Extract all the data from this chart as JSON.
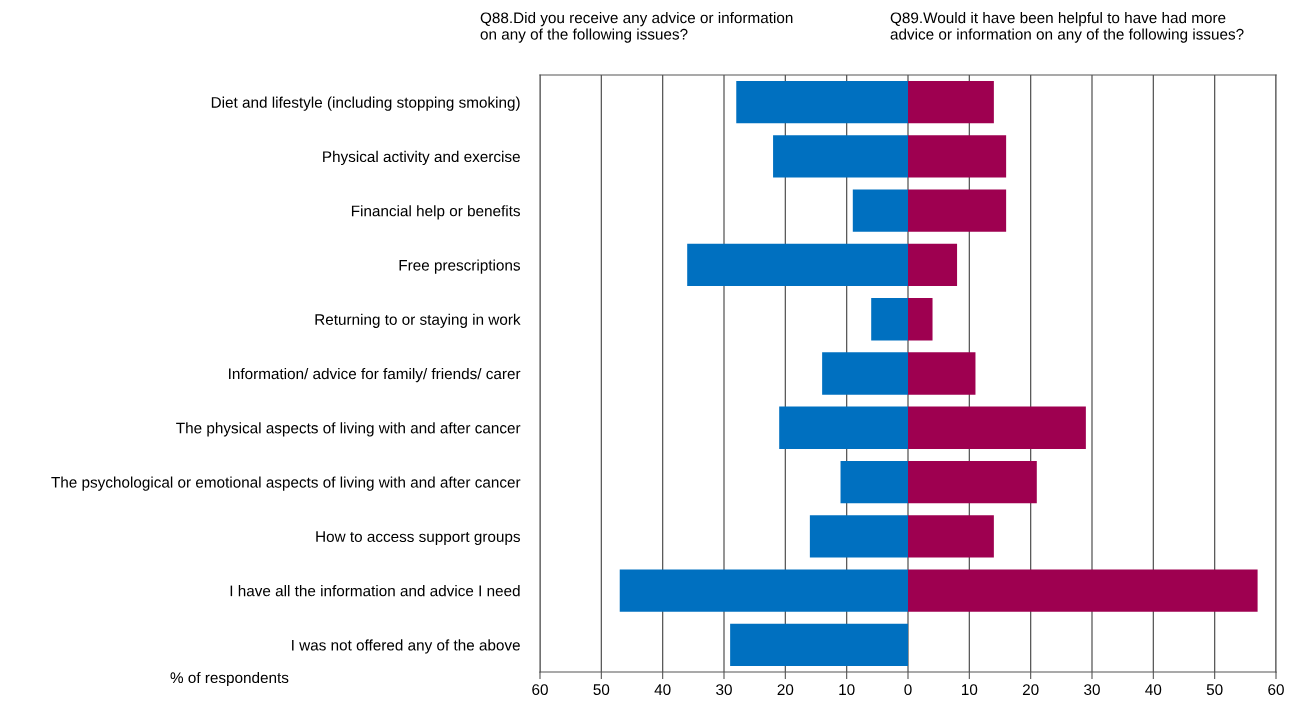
{
  "chart_data": {
    "type": "bar",
    "orientation": "horizontal",
    "xlabel": "% of respondents",
    "categories": [
      "Diet and lifestyle (including stopping smoking)",
      "Physical activity and exercise",
      "Financial help or benefits",
      "Free prescriptions",
      "Returning to or staying in work",
      "Information/ advice for family/ friends/ carer",
      "The physical aspects of living with and after cancer",
      "The psychological or emotional aspects of living with and after cancer",
      "How to access support groups",
      "I have all the information and advice I need",
      "I was not offered any of the above"
    ],
    "series": [
      {
        "name": "Q88.Did you receive any advice or information\non any of the following issues?",
        "color": "#0070c0",
        "values": [
          -28,
          -22,
          -9,
          -36,
          -6,
          -14,
          -21,
          -11,
          -16,
          -47,
          -29
        ]
      },
      {
        "name": "Q89.Would it have been helpful to have had more\nadvice or information on any of the following issues?",
        "color": "#9e0050",
        "values": [
          14,
          16,
          16,
          8,
          4,
          11,
          29,
          21,
          14,
          57,
          null
        ]
      }
    ],
    "xlim": [
      -60,
      60
    ],
    "xticks": [
      {
        "value": -60,
        "label": "60"
      },
      {
        "value": -50,
        "label": "50"
      },
      {
        "value": -40,
        "label": "40"
      },
      {
        "value": -30,
        "label": "30"
      },
      {
        "value": -20,
        "label": "20"
      },
      {
        "value": -10,
        "label": "10"
      },
      0,
      10,
      20,
      30,
      40,
      50,
      60
    ],
    "grid": "x",
    "legend": false,
    "stacked": true
  }
}
